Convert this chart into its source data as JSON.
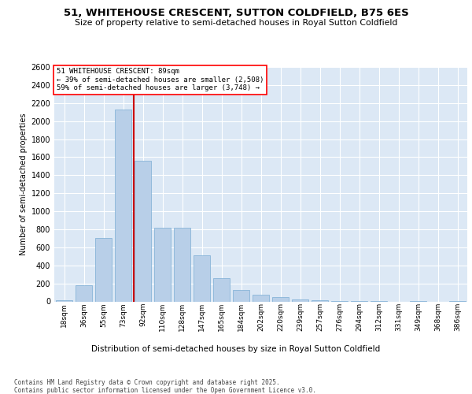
{
  "title": "51, WHITEHOUSE CRESCENT, SUTTON COLDFIELD, B75 6ES",
  "subtitle": "Size of property relative to semi-detached houses in Royal Sutton Coldfield",
  "xlabel_bottom": "Distribution of semi-detached houses by size in Royal Sutton Coldfield",
  "ylabel": "Number of semi-detached properties",
  "categories": [
    "18sqm",
    "36sqm",
    "55sqm",
    "73sqm",
    "92sqm",
    "110sqm",
    "128sqm",
    "147sqm",
    "165sqm",
    "184sqm",
    "202sqm",
    "220sqm",
    "239sqm",
    "257sqm",
    "276sqm",
    "294sqm",
    "312sqm",
    "331sqm",
    "349sqm",
    "368sqm",
    "386sqm"
  ],
  "values": [
    15,
    180,
    700,
    2130,
    1560,
    820,
    820,
    510,
    255,
    125,
    70,
    50,
    25,
    15,
    5,
    5,
    5,
    0,
    5,
    0,
    5
  ],
  "bar_color": "#b8cfe8",
  "bar_edge_color": "#7aadd4",
  "vline_color": "#cc0000",
  "vline_x": 3.55,
  "annotation_title": "51 WHITEHOUSE CRESCENT: 89sqm",
  "annotation_line1": "← 39% of semi-detached houses are smaller (2,508)",
  "annotation_line2": "59% of semi-detached houses are larger (3,748) →",
  "ylim_max": 2600,
  "ytick_step": 200,
  "plot_bg_color": "#dce8f5",
  "footer_line1": "Contains HM Land Registry data © Crown copyright and database right 2025.",
  "footer_line2": "Contains public sector information licensed under the Open Government Licence v3.0."
}
